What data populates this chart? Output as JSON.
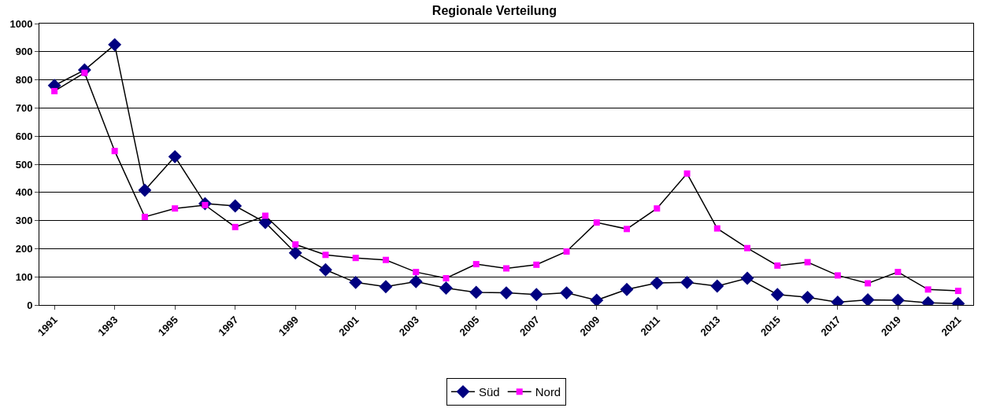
{
  "chart_data": {
    "type": "line",
    "title": "Regionale Verteilung",
    "categories": [
      "1991",
      null,
      "1993",
      null,
      "1995",
      null,
      "1997",
      null,
      "1999",
      null,
      "2001",
      null,
      "2003",
      null,
      "2005",
      null,
      "2007",
      null,
      "2009",
      null,
      "2011",
      null,
      "2013",
      null,
      "2015",
      null,
      "2017",
      null,
      "2019",
      null,
      "2021"
    ],
    "series": [
      {
        "name": "Süd",
        "color": "#000080",
        "marker": "diamond",
        "values": [
          780,
          835,
          925,
          408,
          527,
          360,
          352,
          293,
          185,
          125,
          80,
          65,
          83,
          60,
          45,
          43,
          37,
          43,
          17,
          55,
          78,
          80,
          67,
          95,
          37,
          27,
          10,
          18,
          17,
          8,
          5
        ]
      },
      {
        "name": "Nord",
        "color": "#ff00ff",
        "marker": "square",
        "values": [
          760,
          825,
          547,
          313,
          343,
          355,
          277,
          317,
          215,
          178,
          167,
          160,
          117,
          95,
          145,
          130,
          143,
          190,
          293,
          270,
          343,
          467,
          272,
          202,
          140,
          152,
          105,
          77,
          117,
          55,
          50
        ]
      }
    ],
    "ylim": [
      0,
      1000
    ],
    "yticks": [
      0,
      100,
      200,
      300,
      400,
      500,
      600,
      700,
      800,
      900,
      1000
    ],
    "grid": "y",
    "legend": "bottom"
  }
}
